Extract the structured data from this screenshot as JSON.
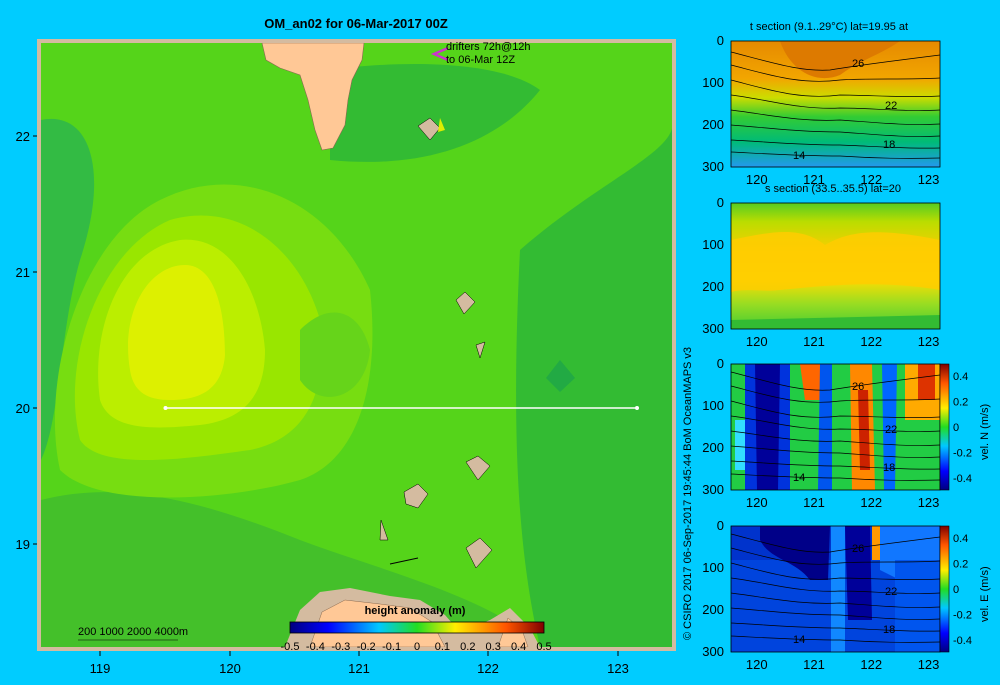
{
  "map": {
    "title": "OM_an02 for 06-Mar-2017 00Z",
    "drifter_note": [
      "drifters 72h@12h",
      "to 06-Mar 12Z"
    ],
    "depth_legend": "200  1000  2000  4000m",
    "lat_ticks": [
      "22",
      "21",
      "20",
      "19"
    ],
    "lon_ticks": [
      "119",
      "120",
      "121",
      "122",
      "123"
    ],
    "colorbar_title": "height anomaly (m)",
    "colorbar_ticks": [
      "-0.5",
      "-0.4",
      "-0.3",
      "-0.2",
      "-0.1",
      "0",
      "0.1",
      "0.2",
      "0.3",
      "0.4",
      "0.5"
    ],
    "section_line": {
      "lat": 20,
      "lon_start": 119.5,
      "lon_end": 123.2
    }
  },
  "credit": "© CSIRO 2017   06-Sep-2017 19:45:44 BoM OceanMAPS v3",
  "panels": [
    {
      "title": "t section (9.1..29°C) lat=19.95 at",
      "y_ticks": [
        "0",
        "100",
        "200",
        "300"
      ],
      "x_ticks": [
        "120",
        "121",
        "122",
        "123"
      ],
      "contour_labels": [
        "26",
        "22",
        "18",
        "14"
      ]
    },
    {
      "title": "s section (33.5..35.5) lat=20",
      "y_ticks": [
        "0",
        "100",
        "200",
        "300"
      ],
      "x_ticks": [
        "120",
        "121",
        "122",
        "123"
      ]
    },
    {
      "title": "",
      "y_ticks": [
        "0",
        "100",
        "200",
        "300"
      ],
      "x_ticks": [
        "120",
        "121",
        "122",
        "123"
      ],
      "contour_labels": [
        "26",
        "22",
        "18",
        "14"
      ],
      "cbar_ticks": [
        "0.4",
        "0.2",
        "0",
        "-0.2",
        "-0.4"
      ],
      "cbar_label": "vel. N  (m/s)"
    },
    {
      "title": "",
      "y_ticks": [
        "0",
        "100",
        "200",
        "300"
      ],
      "x_ticks": [
        "120",
        "121",
        "122",
        "123"
      ],
      "contour_labels": [
        "26",
        "22",
        "18",
        "14"
      ],
      "cbar_ticks": [
        "0.4",
        "0.2",
        "0",
        "-0.2",
        "-0.4"
      ],
      "cbar_label": "vel. E  (m/s)"
    }
  ]
}
